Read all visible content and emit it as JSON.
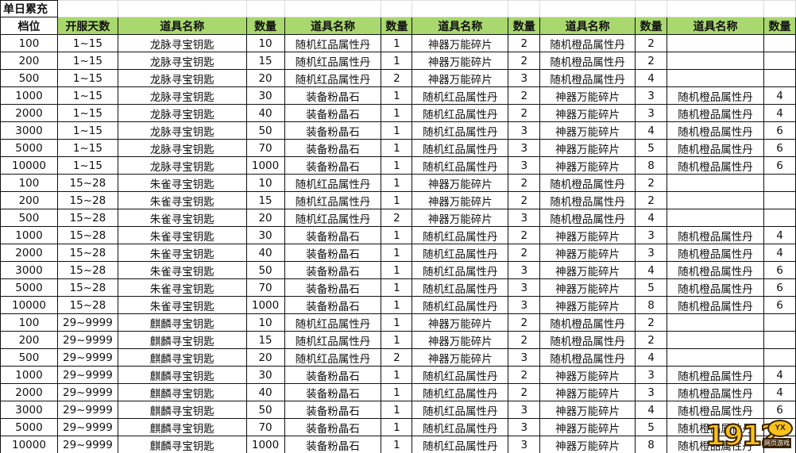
{
  "title": "单日累充",
  "headers": [
    "档位",
    "开服天数",
    "道具名称",
    "数量",
    "道具名称",
    "数量",
    "道具名称",
    "数量",
    "道具名称",
    "数量",
    "道具名称",
    "数量"
  ],
  "rows": [
    [
      "100",
      "1~15",
      "龙脉寻宝钥匙",
      "10",
      "随机红品属性丹",
      "1",
      "神器万能碎片",
      "2",
      "随机橙品属性丹",
      "2",
      "",
      ""
    ],
    [
      "200",
      "1~15",
      "龙脉寻宝钥匙",
      "15",
      "随机红品属性丹",
      "1",
      "神器万能碎片",
      "2",
      "随机橙品属性丹",
      "2",
      "",
      ""
    ],
    [
      "500",
      "1~15",
      "龙脉寻宝钥匙",
      "20",
      "随机红品属性丹",
      "2",
      "神器万能碎片",
      "3",
      "随机橙品属性丹",
      "4",
      "",
      ""
    ],
    [
      "1000",
      "1~15",
      "龙脉寻宝钥匙",
      "30",
      "装备粉晶石",
      "1",
      "随机红品属性丹",
      "2",
      "神器万能碎片",
      "3",
      "随机橙品属性丹",
      "4"
    ],
    [
      "2000",
      "1~15",
      "龙脉寻宝钥匙",
      "40",
      "装备粉晶石",
      "1",
      "随机红品属性丹",
      "2",
      "神器万能碎片",
      "3",
      "随机橙品属性丹",
      "4"
    ],
    [
      "3000",
      "1~15",
      "龙脉寻宝钥匙",
      "50",
      "装备粉晶石",
      "1",
      "随机红品属性丹",
      "3",
      "神器万能碎片",
      "4",
      "随机橙品属性丹",
      "6"
    ],
    [
      "5000",
      "1~15",
      "龙脉寻宝钥匙",
      "70",
      "装备粉晶石",
      "1",
      "随机红品属性丹",
      "3",
      "神器万能碎片",
      "5",
      "随机橙品属性丹",
      "6"
    ],
    [
      "10000",
      "1~15",
      "龙脉寻宝钥匙",
      "1000",
      "装备粉晶石",
      "1",
      "随机红品属性丹",
      "3",
      "神器万能碎片",
      "8",
      "随机橙品属性丹",
      "6"
    ],
    [
      "100",
      "15~28",
      "朱雀寻宝钥匙",
      "10",
      "随机红品属性丹",
      "1",
      "神器万能碎片",
      "2",
      "随机橙品属性丹",
      "2",
      "",
      ""
    ],
    [
      "200",
      "15~28",
      "朱雀寻宝钥匙",
      "15",
      "随机红品属性丹",
      "1",
      "神器万能碎片",
      "2",
      "随机橙品属性丹",
      "2",
      "",
      ""
    ],
    [
      "500",
      "15~28",
      "朱雀寻宝钥匙",
      "20",
      "随机红品属性丹",
      "2",
      "神器万能碎片",
      "3",
      "随机橙品属性丹",
      "4",
      "",
      ""
    ],
    [
      "1000",
      "15~28",
      "朱雀寻宝钥匙",
      "30",
      "装备粉晶石",
      "1",
      "随机红品属性丹",
      "2",
      "神器万能碎片",
      "3",
      "随机橙品属性丹",
      "4"
    ],
    [
      "2000",
      "15~28",
      "朱雀寻宝钥匙",
      "40",
      "装备粉晶石",
      "1",
      "随机红品属性丹",
      "2",
      "神器万能碎片",
      "3",
      "随机橙品属性丹",
      "4"
    ],
    [
      "3000",
      "15~28",
      "朱雀寻宝钥匙",
      "50",
      "装备粉晶石",
      "1",
      "随机红品属性丹",
      "3",
      "神器万能碎片",
      "4",
      "随机橙品属性丹",
      "6"
    ],
    [
      "5000",
      "15~28",
      "朱雀寻宝钥匙",
      "70",
      "装备粉晶石",
      "1",
      "随机红品属性丹",
      "3",
      "神器万能碎片",
      "5",
      "随机橙品属性丹",
      "6"
    ],
    [
      "10000",
      "15~28",
      "朱雀寻宝钥匙",
      "1000",
      "装备粉晶石",
      "1",
      "随机红品属性丹",
      "3",
      "神器万能碎片",
      "8",
      "随机橙品属性丹",
      "6"
    ],
    [
      "100",
      "29~9999",
      "麒麟寻宝钥匙",
      "10",
      "随机红品属性丹",
      "1",
      "神器万能碎片",
      "2",
      "随机橙品属性丹",
      "2",
      "",
      ""
    ],
    [
      "200",
      "29~9999",
      "麒麟寻宝钥匙",
      "15",
      "随机红品属性丹",
      "1",
      "神器万能碎片",
      "2",
      "随机橙品属性丹",
      "2",
      "",
      ""
    ],
    [
      "500",
      "29~9999",
      "麒麟寻宝钥匙",
      "20",
      "随机红品属性丹",
      "2",
      "神器万能碎片",
      "3",
      "随机橙品属性丹",
      "4",
      "",
      ""
    ],
    [
      "1000",
      "29~9999",
      "麒麟寻宝钥匙",
      "30",
      "装备粉晶石",
      "1",
      "随机红品属性丹",
      "2",
      "神器万能碎片",
      "3",
      "随机橙品属性丹",
      "4"
    ],
    [
      "2000",
      "29~9999",
      "麒麟寻宝钥匙",
      "40",
      "装备粉晶石",
      "1",
      "随机红品属性丹",
      "2",
      "神器万能碎片",
      "3",
      "随机橙品属性丹",
      "4"
    ],
    [
      "3000",
      "29~9999",
      "麒麟寻宝钥匙",
      "50",
      "装备粉晶石",
      "1",
      "随机红品属性丹",
      "3",
      "神器万能碎片",
      "4",
      "随机橙品属性丹",
      "6"
    ],
    [
      "5000",
      "29~9999",
      "麒麟寻宝钥匙",
      "70",
      "装备粉晶石",
      "1",
      "随机红品属性丹",
      "3",
      "神器万能碎片",
      "5",
      "随机橙品属性丹",
      "6"
    ],
    [
      "10000",
      "29~9999",
      "麒麟寻宝钥匙",
      "1000",
      "装备粉晶石",
      "1",
      "随机红品属性丹",
      "3",
      "神器万能碎片",
      "8",
      "随机橙品属性丹",
      "6"
    ]
  ],
  "colors": {
    "header_green": "#a9d86e"
  },
  "watermark": {
    "number": "1912",
    "badge": "YX",
    "subtitle": "网页游戏"
  }
}
